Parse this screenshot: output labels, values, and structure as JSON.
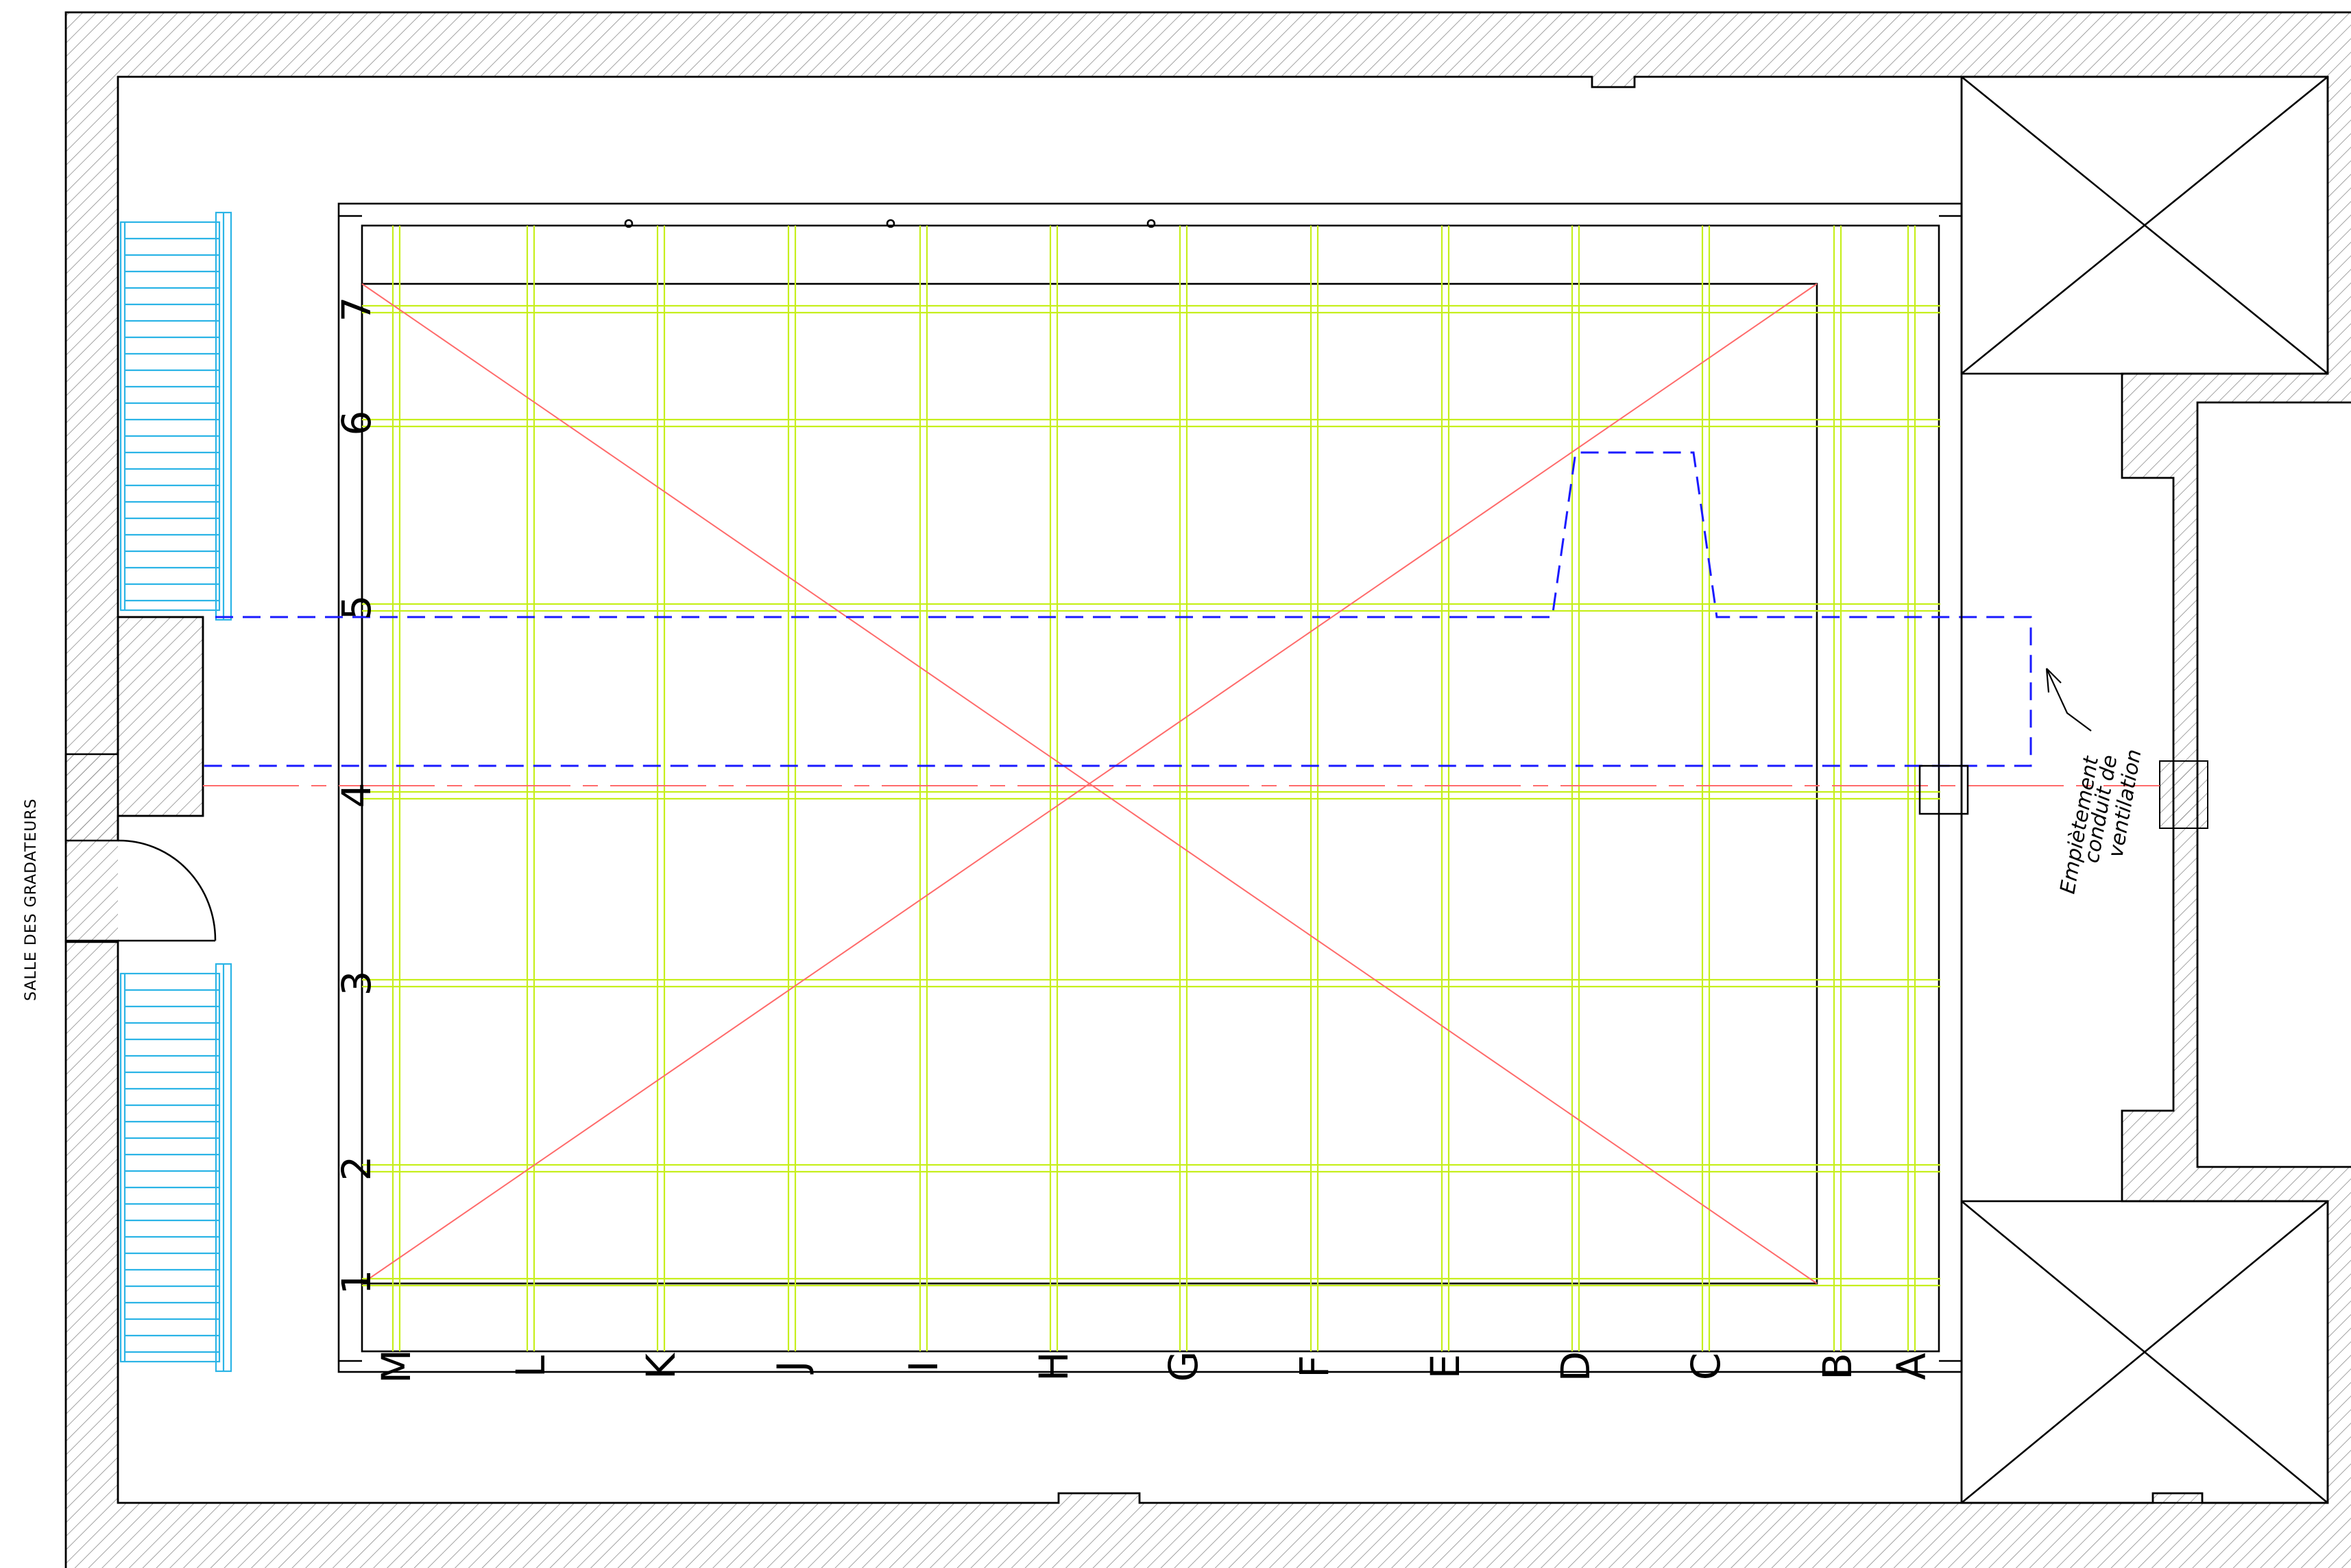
{
  "room_label": "SALLE DES GRADATEURS",
  "annotation": {
    "lines": [
      "Empiètement",
      "conduit de",
      "ventilation"
    ]
  },
  "grid": {
    "column_letters": [
      "M",
      "L",
      "K",
      "J",
      "I",
      "H",
      "G",
      "F",
      "E",
      "D",
      "C",
      "B",
      "A"
    ],
    "row_numbers": [
      "7",
      "6",
      "5",
      "4",
      "3",
      "2",
      "1"
    ]
  },
  "colors": {
    "walls": "#000000",
    "hatch": "#8c8c8c",
    "truss_grid": "#c6ef1c",
    "diagonals": "#ff6b6b",
    "duct": "#1a1aff",
    "stairs": "#2bb4e6"
  },
  "icons": {
    "hatch": "diagonal-hatch-pattern",
    "door": "swing-door-arc",
    "stairs": "staircase-treads",
    "columns": "x-crossed-column-box",
    "leader": "arrow-leader"
  }
}
